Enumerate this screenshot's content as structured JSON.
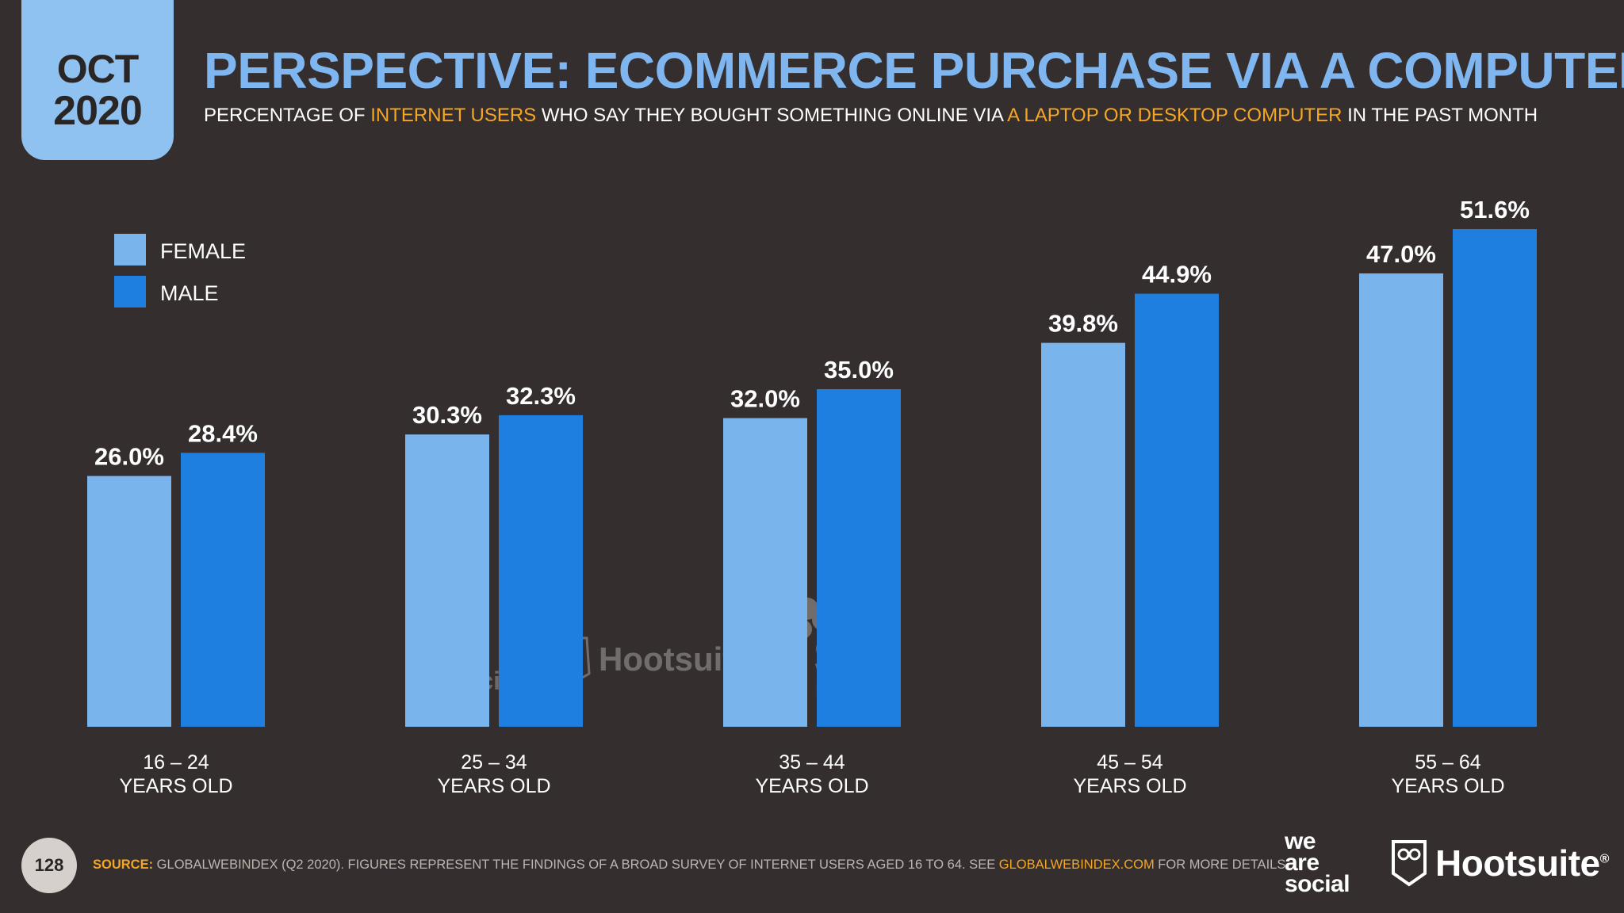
{
  "header": {
    "month": "OCT",
    "year": "2020",
    "title": "PERSPECTIVE: ECOMMERCE PURCHASE VIA A COMPUTER",
    "subtitle_1": "PERCENTAGE OF ",
    "subtitle_hl1": "INTERNET USERS",
    "subtitle_2": " WHO SAY THEY BOUGHT SOMETHING ONLINE VIA ",
    "subtitle_hl2": "A LAPTOP OR DESKTOP COMPUTER",
    "subtitle_3": " IN THE PAST MONTH"
  },
  "colors": {
    "female": "#7ab4ec",
    "male": "#1f7fe0",
    "accent": "#f5a623",
    "background": "#352e2e"
  },
  "chart_data": {
    "type": "bar",
    "title": "PERSPECTIVE: ECOMMERCE PURCHASE VIA A COMPUTER",
    "categories": [
      {
        "range": "16 – 24",
        "unit": "YEARS OLD"
      },
      {
        "range": "25 – 34",
        "unit": "YEARS OLD"
      },
      {
        "range": "35 – 44",
        "unit": "YEARS OLD"
      },
      {
        "range": "45 – 54",
        "unit": "YEARS OLD"
      },
      {
        "range": "55 – 64",
        "unit": "YEARS OLD"
      }
    ],
    "series": [
      {
        "name": "FEMALE",
        "values": [
          26.0,
          30.3,
          32.0,
          39.8,
          47.0
        ],
        "labels": [
          "26.0%",
          "30.3%",
          "32.0%",
          "39.8%",
          "47.0%"
        ]
      },
      {
        "name": "MALE",
        "values": [
          28.4,
          32.3,
          35.0,
          44.9,
          51.6
        ],
        "labels": [
          "28.4%",
          "32.3%",
          "35.0%",
          "44.9%",
          "51.6%"
        ]
      }
    ],
    "ylim": [
      0,
      51.6
    ],
    "legend": "top-left",
    "xlabel": "",
    "ylabel": ""
  },
  "watermarks": {
    "was_line1": "we",
    "was_line2": "are",
    "was_line3": "social",
    "hootsuite": "Hootsuite",
    "gwi_line1": "global",
    "gwi_line2": "web",
    "gwi_line3": "index"
  },
  "footer": {
    "page_number": "128",
    "source_label": "SOURCE:",
    "source_text": " GLOBALWEBINDEX (Q2 2020). FIGURES REPRESENT THE FINDINGS OF A BROAD SURVEY OF INTERNET USERS AGED 16 TO 64. SEE ",
    "source_link": "GLOBALWEBINDEX.COM",
    "source_end": " FOR MORE DETAILS.",
    "brand_was_1": "we",
    "brand_was_2": "are",
    "brand_was_3": "social",
    "brand_hootsuite": "Hootsuite",
    "brand_reg": "®"
  }
}
